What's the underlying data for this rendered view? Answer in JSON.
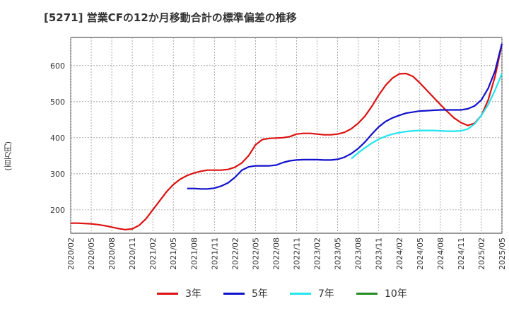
{
  "chart_data": {
    "type": "line",
    "title": "[5271]  営業CFの12か月移動合計の標準偏差の推移",
    "ylabel": "(百万円)",
    "xlabel": "",
    "ylim": [
      135,
      678
    ],
    "yticks": [
      200,
      300,
      400,
      500,
      600
    ],
    "xticks": [
      "2020/02",
      "2020/05",
      "2020/08",
      "2020/11",
      "2021/02",
      "2021/05",
      "2021/08",
      "2021/11",
      "2022/02",
      "2022/05",
      "2022/08",
      "2022/11",
      "2023/02",
      "2023/05",
      "2023/08",
      "2023/11",
      "2024/02",
      "2024/05",
      "2024/08",
      "2024/11",
      "2025/02",
      "2025/05"
    ],
    "grid": true,
    "legend_position": "bottom",
    "series": [
      {
        "name": "3年",
        "color": "#dd1111",
        "values": [
          [
            "2020/02",
            163
          ],
          [
            "2020/03",
            163
          ],
          [
            "2020/04",
            162
          ],
          [
            "2020/05",
            161
          ],
          [
            "2020/06",
            159
          ],
          [
            "2020/07",
            156
          ],
          [
            "2020/08",
            152
          ],
          [
            "2020/09",
            148
          ],
          [
            "2020/10",
            145
          ],
          [
            "2020/11",
            147
          ],
          [
            "2020/12",
            157
          ],
          [
            "2021/01",
            175
          ],
          [
            "2021/02",
            200
          ],
          [
            "2021/03",
            225
          ],
          [
            "2021/04",
            250
          ],
          [
            "2021/05",
            270
          ],
          [
            "2021/06",
            285
          ],
          [
            "2021/07",
            295
          ],
          [
            "2021/08",
            302
          ],
          [
            "2021/09",
            307
          ],
          [
            "2021/10",
            310
          ],
          [
            "2021/11",
            310
          ],
          [
            "2021/12",
            310
          ],
          [
            "2022/01",
            312
          ],
          [
            "2022/02",
            318
          ],
          [
            "2022/03",
            330
          ],
          [
            "2022/04",
            350
          ],
          [
            "2022/05",
            380
          ],
          [
            "2022/06",
            395
          ],
          [
            "2022/07",
            398
          ],
          [
            "2022/08",
            399
          ],
          [
            "2022/09",
            400
          ],
          [
            "2022/10",
            403
          ],
          [
            "2022/11",
            410
          ],
          [
            "2022/12",
            412
          ],
          [
            "2023/01",
            412
          ],
          [
            "2023/02",
            410
          ],
          [
            "2023/03",
            408
          ],
          [
            "2023/04",
            408
          ],
          [
            "2023/05",
            410
          ],
          [
            "2023/06",
            415
          ],
          [
            "2023/07",
            425
          ],
          [
            "2023/08",
            440
          ],
          [
            "2023/09",
            460
          ],
          [
            "2023/10",
            487
          ],
          [
            "2023/11",
            518
          ],
          [
            "2023/12",
            545
          ],
          [
            "2024/01",
            565
          ],
          [
            "2024/02",
            577
          ],
          [
            "2024/03",
            578
          ],
          [
            "2024/04",
            570
          ],
          [
            "2024/05",
            552
          ],
          [
            "2024/06",
            532
          ],
          [
            "2024/07",
            512
          ],
          [
            "2024/08",
            492
          ],
          [
            "2024/09",
            473
          ],
          [
            "2024/10",
            455
          ],
          [
            "2024/11",
            442
          ],
          [
            "2024/12",
            434
          ],
          [
            "2025/01",
            440
          ],
          [
            "2025/02",
            462
          ],
          [
            "2025/03",
            505
          ],
          [
            "2025/04",
            570
          ],
          [
            "2025/05",
            660
          ]
        ]
      },
      {
        "name": "5年",
        "color": "#1111cc",
        "values": [
          [
            "2021/07",
            259
          ],
          [
            "2021/08",
            259
          ],
          [
            "2021/09",
            258
          ],
          [
            "2021/10",
            258
          ],
          [
            "2021/11",
            260
          ],
          [
            "2021/12",
            266
          ],
          [
            "2022/01",
            275
          ],
          [
            "2022/02",
            290
          ],
          [
            "2022/03",
            310
          ],
          [
            "2022/04",
            319
          ],
          [
            "2022/05",
            322
          ],
          [
            "2022/06",
            322
          ],
          [
            "2022/07",
            322
          ],
          [
            "2022/08",
            324
          ],
          [
            "2022/09",
            331
          ],
          [
            "2022/10",
            336
          ],
          [
            "2022/11",
            338
          ],
          [
            "2022/12",
            339
          ],
          [
            "2023/01",
            339
          ],
          [
            "2023/02",
            339
          ],
          [
            "2023/03",
            338
          ],
          [
            "2023/04",
            338
          ],
          [
            "2023/05",
            340
          ],
          [
            "2023/06",
            346
          ],
          [
            "2023/07",
            356
          ],
          [
            "2023/08",
            370
          ],
          [
            "2023/09",
            388
          ],
          [
            "2023/10",
            410
          ],
          [
            "2023/11",
            430
          ],
          [
            "2023/12",
            445
          ],
          [
            "2024/01",
            455
          ],
          [
            "2024/02",
            462
          ],
          [
            "2024/03",
            468
          ],
          [
            "2024/04",
            471
          ],
          [
            "2024/05",
            474
          ],
          [
            "2024/06",
            475
          ],
          [
            "2024/07",
            476
          ],
          [
            "2024/08",
            477
          ],
          [
            "2024/09",
            477
          ],
          [
            "2024/10",
            477
          ],
          [
            "2024/11",
            477
          ],
          [
            "2024/12",
            480
          ],
          [
            "2025/01",
            488
          ],
          [
            "2025/02",
            505
          ],
          [
            "2025/03",
            537
          ],
          [
            "2025/04",
            585
          ],
          [
            "2025/05",
            661
          ]
        ]
      },
      {
        "name": "7年",
        "color": "#22e5ee",
        "values": [
          [
            "2023/07",
            342
          ],
          [
            "2023/08",
            358
          ],
          [
            "2023/09",
            372
          ],
          [
            "2023/10",
            385
          ],
          [
            "2023/11",
            396
          ],
          [
            "2023/12",
            404
          ],
          [
            "2024/01",
            410
          ],
          [
            "2024/02",
            414
          ],
          [
            "2024/03",
            417
          ],
          [
            "2024/04",
            419
          ],
          [
            "2024/05",
            420
          ],
          [
            "2024/06",
            420
          ],
          [
            "2024/07",
            420
          ],
          [
            "2024/08",
            419
          ],
          [
            "2024/09",
            418
          ],
          [
            "2024/10",
            418
          ],
          [
            "2024/11",
            419
          ],
          [
            "2024/12",
            424
          ],
          [
            "2025/01",
            438
          ],
          [
            "2025/02",
            462
          ],
          [
            "2025/03",
            492
          ],
          [
            "2025/04",
            532
          ],
          [
            "2025/05",
            578
          ]
        ]
      },
      {
        "name": "10年",
        "color": "#228b22",
        "values": []
      }
    ]
  }
}
